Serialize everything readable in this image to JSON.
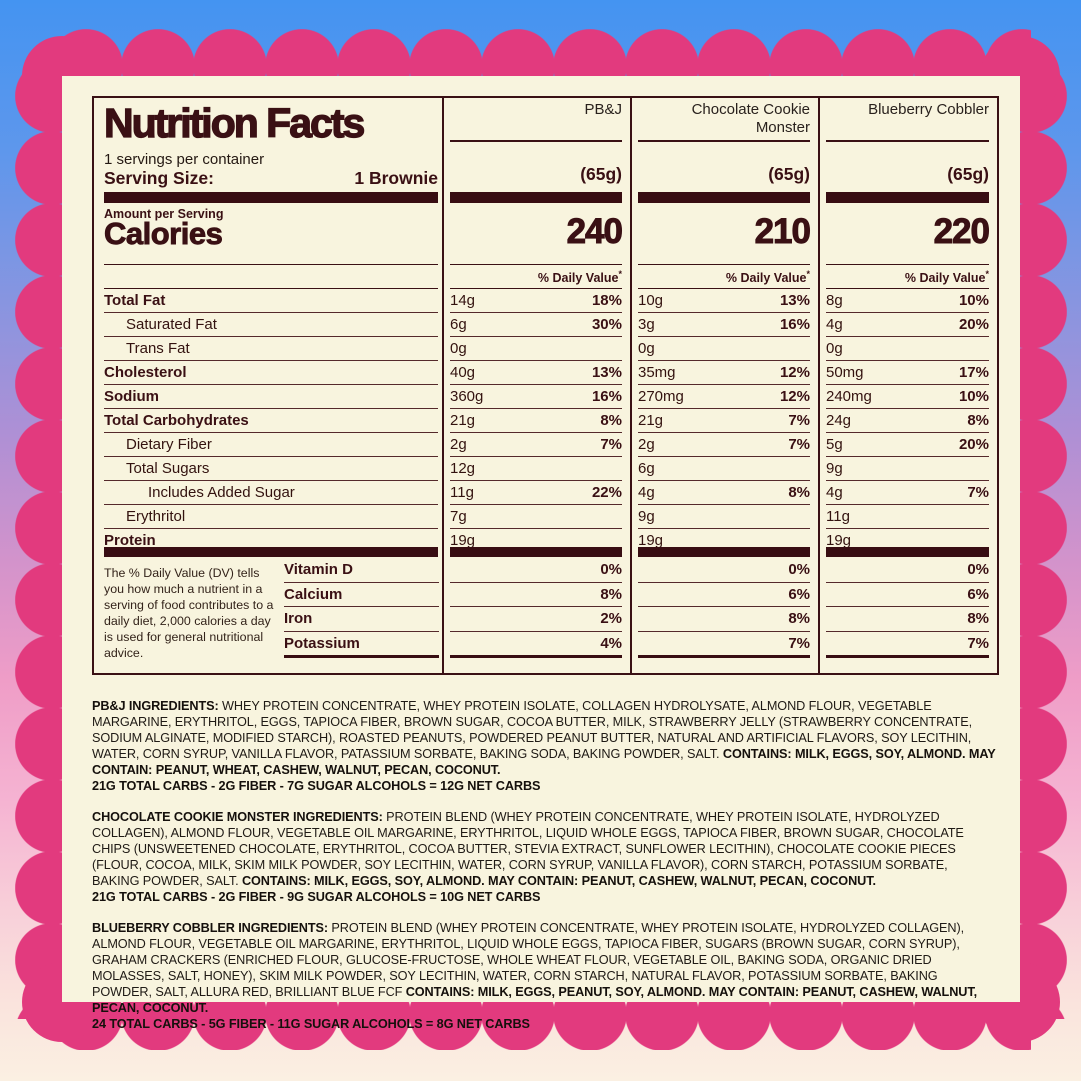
{
  "colors": {
    "scallop_pink": "#E23A7E",
    "panel_cream": "#F8F4DE",
    "text_maroon": "#3A1014",
    "bg_gradient_top": "#4494F1",
    "bg_gradient_mid": "#AE90D5",
    "bg_gradient_bottom": "#FBF0E2"
  },
  "label": {
    "title": "Nutrition Facts",
    "servings_per_container": "1 servings per container",
    "serving_size_label": "Serving Size:",
    "serving_size_value": "1 Brownie",
    "amount_per_serving": "Amount per Serving",
    "calories_label": "Calories",
    "daily_value_label": "% Daily Value",
    "daily_value_asterisk": "*",
    "footnote": "The % Daily Value (DV) tells you how much a nutrient in a serving of food contributes to a daily diet, 2,000 calories a day is used for general nutritional advice."
  },
  "products": [
    {
      "name": "PB&J",
      "serving": "(65g)",
      "calories": "240"
    },
    {
      "name": "Chocolate Cookie Monster",
      "serving": "(65g)",
      "calories": "210"
    },
    {
      "name": "Blueberry Cobbler",
      "serving": "(65g)",
      "calories": "220"
    }
  ],
  "nutrient_rows": [
    {
      "label": "Total Fat",
      "bold": true,
      "indent": 0,
      "values": [
        [
          "14g",
          "18%"
        ],
        [
          "10g",
          "13%"
        ],
        [
          "8g",
          "10%"
        ]
      ]
    },
    {
      "label": "Saturated Fat",
      "bold": false,
      "indent": 1,
      "values": [
        [
          "6g",
          "30%"
        ],
        [
          "3g",
          "16%"
        ],
        [
          "4g",
          "20%"
        ]
      ]
    },
    {
      "label": "Trans Fat",
      "bold": false,
      "indent": 1,
      "values": [
        [
          "0g",
          ""
        ],
        [
          "0g",
          ""
        ],
        [
          "0g",
          ""
        ]
      ]
    },
    {
      "label": "Cholesterol",
      "bold": true,
      "indent": 0,
      "values": [
        [
          "40g",
          "13%"
        ],
        [
          "35mg",
          "12%"
        ],
        [
          "50mg",
          "17%"
        ]
      ]
    },
    {
      "label": "Sodium",
      "bold": true,
      "indent": 0,
      "values": [
        [
          "360g",
          "16%"
        ],
        [
          "270mg",
          "12%"
        ],
        [
          "240mg",
          "10%"
        ]
      ]
    },
    {
      "label": "Total Carbohydrates",
      "bold": true,
      "indent": 0,
      "values": [
        [
          "21g",
          "8%"
        ],
        [
          "21g",
          "7%"
        ],
        [
          "24g",
          "8%"
        ]
      ]
    },
    {
      "label": "Dietary Fiber",
      "bold": false,
      "indent": 1,
      "values": [
        [
          "2g",
          "7%"
        ],
        [
          "2g",
          "7%"
        ],
        [
          "5g",
          "20%"
        ]
      ]
    },
    {
      "label": "Total Sugars",
      "bold": false,
      "indent": 1,
      "values": [
        [
          "12g",
          ""
        ],
        [
          "6g",
          ""
        ],
        [
          "9g",
          ""
        ]
      ]
    },
    {
      "label": "Includes Added Sugar",
      "bold": false,
      "indent": 2,
      "values": [
        [
          "11g",
          "22%"
        ],
        [
          "4g",
          "8%"
        ],
        [
          "4g",
          "7%"
        ]
      ]
    },
    {
      "label": "Erythritol",
      "bold": false,
      "indent": 1,
      "values": [
        [
          "7g",
          ""
        ],
        [
          "9g",
          ""
        ],
        [
          "11g",
          ""
        ]
      ]
    },
    {
      "label": "Protein",
      "bold": true,
      "indent": 0,
      "values": [
        [
          "19g",
          ""
        ],
        [
          "19g",
          ""
        ],
        [
          "19g",
          ""
        ]
      ]
    }
  ],
  "vitamin_rows": [
    {
      "label": "Vitamin D",
      "values": [
        "0%",
        "0%",
        "0%"
      ]
    },
    {
      "label": "Calcium",
      "values": [
        "8%",
        "6%",
        "6%"
      ]
    },
    {
      "label": "Iron",
      "values": [
        "2%",
        "8%",
        "8%"
      ]
    },
    {
      "label": "Potassium",
      "values": [
        "4%",
        "7%",
        "7%"
      ]
    }
  ],
  "ingredients": [
    {
      "lead": "PB&J INGREDIENTS:",
      "body": "WHEY PROTEIN CONCENTRATE, WHEY PROTEIN ISOLATE, COLLAGEN HYDROLYSATE, ALMOND FLOUR, VEGETABLE MARGARINE, ERYTHRITOL, EGGS, TAPIOCA FIBER, BROWN SUGAR, COCOA BUTTER, MILK, STRAWBERRY JELLY (STRAWBERRY CONCENTRATE, SODIUM ALGINATE, MODIFIED STARCH), ROASTED PEANUTS, POWDERED PEANUT BUTTER, NATURAL AND ARTIFICIAL FLAVORS, SOY LECITHIN, WATER, CORN SYRUP, VANILLA FLAVOR, PATASSIUM SORBATE, BAKING SODA, BAKING POWDER, SALT.",
      "contains": "CONTAINS: MILK, EGGS, SOY, ALMOND. MAY CONTAIN: PEANUT, WHEAT, CASHEW, WALNUT, PECAN, COCONUT.",
      "carbs": "21G TOTAL CARBS - 2G FIBER - 7G SUGAR ALCOHOLS = 12G NET CARBS"
    },
    {
      "lead": "CHOCOLATE COOKIE MONSTER INGREDIENTS:",
      "body": "PROTEIN BLEND (WHEY PROTEIN CONCENTRATE, WHEY PROTEIN ISOLATE, HYDROLYZED COLLAGEN), ALMOND FLOUR, VEGETABLE OIL MARGARINE, ERYTHRITOL, LIQUID WHOLE EGGS, TAPIOCA FIBER, BROWN SUGAR, CHOCOLATE CHIPS (UNSWEETENED CHOCOLATE, ERYTHRITOL, COCOA BUTTER, STEVIA EXTRACT, SUNFLOWER LECITHIN), CHOCOLATE COOKIE PIECES (FLOUR, COCOA, MILK, SKIM MILK POWDER, SOY LECITHIN, WATER, CORN SYRUP, VANILLA FLAVOR), CORN STARCH, POTASSIUM SORBATE, BAKING POWDER, SALT.",
      "contains": "CONTAINS: MILK, EGGS, SOY, ALMOND. MAY CONTAIN: PEANUT, CASHEW, WALNUT, PECAN, COCONUT.",
      "carbs": "21G TOTAL CARBS - 2G FIBER - 9G SUGAR ALCOHOLS = 10G NET CARBS"
    },
    {
      "lead": "BLUEBERRY COBBLER INGREDIENTS:",
      "body": "PROTEIN BLEND (WHEY PROTEIN CONCENTRATE, WHEY PROTEIN ISOLATE, HYDROLYZED COLLAGEN), ALMOND FLOUR, VEGETABLE OIL MARGARINE, ERYTHRITOL, LIQUID WHOLE EGGS, TAPIOCA FIBER, SUGARS (BROWN SUGAR, CORN SYRUP), GRAHAM CRACKERS (ENRICHED FLOUR, GLUCOSE-FRUCTOSE, WHOLE WHEAT FLOUR, VEGETABLE OIL, BAKING SODA, ORGANIC DRIED MOLASSES, SALT, HONEY), SKIM MILK POWDER, SOY LECITHIN, WATER, CORN STARCH, NATURAL FLAVOR, POTASSIUM SORBATE, BAKING POWDER, SALT, ALLURA RED, BRILLIANT BLUE FCF",
      "contains": "CONTAINS: MILK, EGGS, PEANUT, SOY, ALMOND. MAY CONTAIN: PEANUT, CASHEW, WALNUT, PECAN, COCONUT.",
      "carbs": "24 TOTAL CARBS - 5G FIBER - 11G SUGAR ALCOHOLS = 8G NET CARBS"
    }
  ]
}
